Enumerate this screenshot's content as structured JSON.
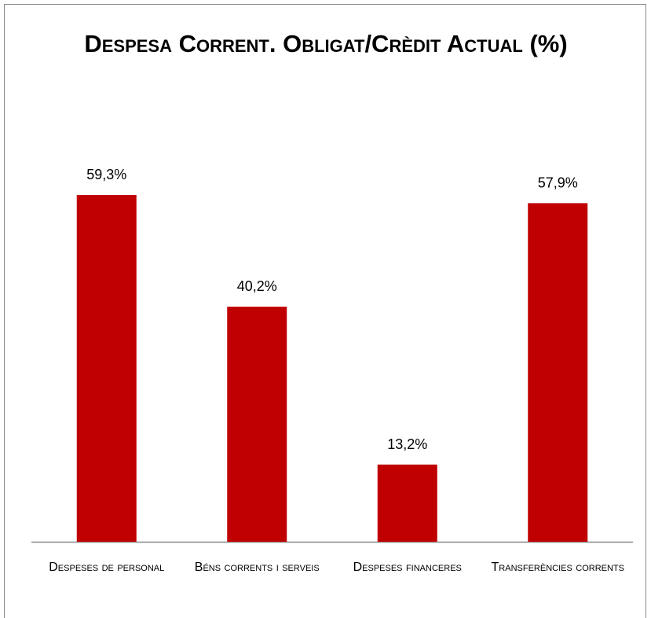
{
  "chart_data": {
    "type": "bar",
    "title": "Despesa Corrent. Obligat/Crèdit Actual (%)",
    "categories": [
      "Despeses de personal",
      "Béns corrents i serveis",
      "Despeses financeres",
      "Transferències corrents"
    ],
    "values": [
      59.3,
      40.2,
      13.2,
      57.9
    ],
    "value_labels": [
      "59,3%",
      "40,2%",
      "13,2%",
      "57,9%"
    ],
    "color": "#c00000"
  }
}
